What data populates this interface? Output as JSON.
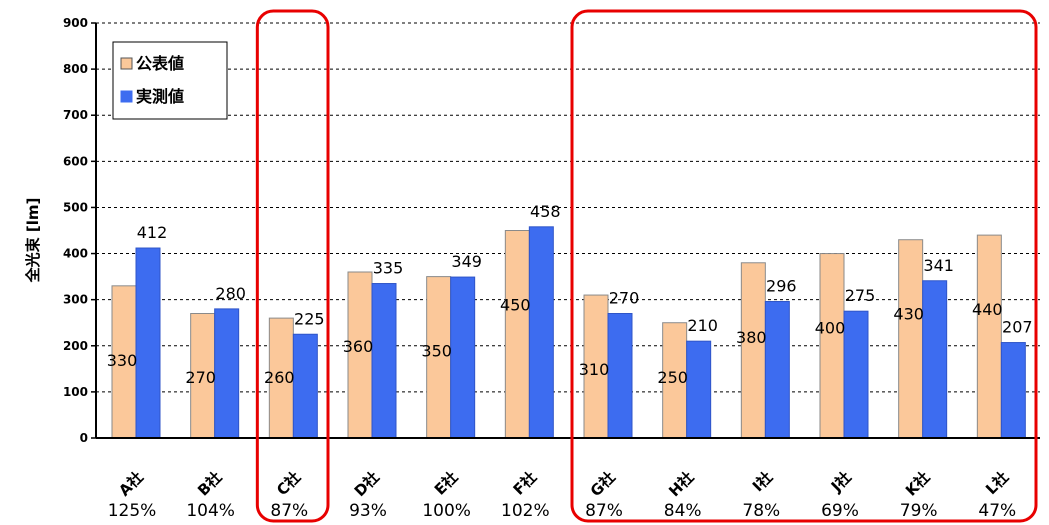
{
  "chart_data": {
    "type": "bar",
    "ylabel": "全光束 [lm]",
    "ylim": [
      0,
      900
    ],
    "yticks": [
      0,
      100,
      200,
      300,
      400,
      500,
      600,
      700,
      800,
      900
    ],
    "grid": true,
    "legend_position": "top-left",
    "categories": [
      "A社",
      "B社",
      "C社",
      "D社",
      "E社",
      "F社",
      "G社",
      "H社",
      "I社",
      "J社",
      "K社",
      "L社"
    ],
    "percentages": [
      "125%",
      "104%",
      "87%",
      "93%",
      "100%",
      "102%",
      "87%",
      "84%",
      "78%",
      "69%",
      "79%",
      "47%"
    ],
    "series": [
      {
        "name": "公表値",
        "color": "#fbc89a",
        "values": [
          330,
          270,
          260,
          360,
          350,
          450,
          310,
          250,
          380,
          400,
          430,
          440
        ]
      },
      {
        "name": "実測値",
        "color": "#3d6cf0",
        "values": [
          412,
          280,
          225,
          335,
          349,
          458,
          270,
          210,
          296,
          275,
          341,
          207
        ]
      }
    ],
    "highlights": [
      {
        "categories": [
          "C社"
        ],
        "color": "#e80000"
      },
      {
        "categories": [
          "G社",
          "H社",
          "I社",
          "J社",
          "K社",
          "L社"
        ],
        "color": "#e80000"
      }
    ]
  }
}
